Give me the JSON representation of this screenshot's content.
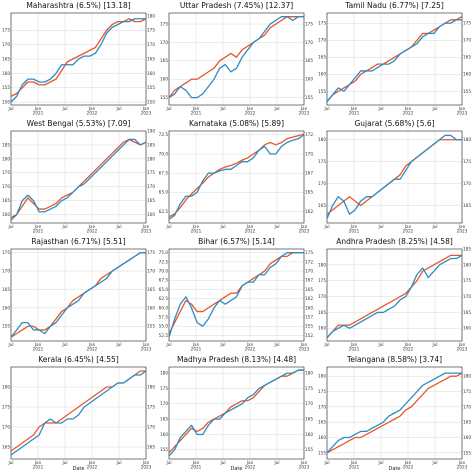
{
  "colors": {
    "orange": "#e8562a",
    "blue": "#2b8cc4",
    "grid": "#d9d9d9",
    "frame": "#222222"
  },
  "x_ticks": [
    "Jul",
    "Jan\n2021",
    "Jul",
    "Jan\n2022",
    "Jul",
    "Jan\n2023"
  ],
  "x_axis_label": "Date",
  "chart_data": [
    {
      "type": "line",
      "title": "Maharashtra (6.5%) [13.18]",
      "ylim": [
        149,
        181
      ],
      "left_ticks": [
        "150",
        "155",
        "160",
        "165",
        "170",
        "175"
      ],
      "right_ticks": [
        "150",
        "155",
        "160",
        "165",
        "170",
        "175",
        "180"
      ],
      "series": [
        {
          "color": "orange",
          "values": [
            152,
            153,
            155,
            157,
            157,
            156,
            156,
            157,
            158,
            161,
            164,
            165,
            166,
            167,
            168,
            169,
            172,
            175,
            177,
            178,
            178,
            179,
            178,
            178,
            179
          ]
        },
        {
          "color": "blue",
          "values": [
            150,
            152,
            156,
            158,
            158,
            157,
            157,
            158,
            160,
            163,
            163,
            163,
            165,
            166,
            166,
            167,
            170,
            174,
            176,
            177,
            178,
            178,
            179,
            179,
            179
          ]
        }
      ]
    },
    {
      "type": "line",
      "title": "Uttar Pradesh (7.45%) [12.37]",
      "ylim": [
        153,
        178
      ],
      "left_ticks": [
        "155",
        "160",
        "165",
        "170",
        "175"
      ],
      "right_ticks": [
        "155",
        "160",
        "165",
        "170",
        "175"
      ],
      "series": [
        {
          "color": "orange",
          "values": [
            155,
            157,
            158,
            159,
            160,
            160,
            161,
            162,
            163,
            165,
            166,
            167,
            166,
            168,
            169,
            170,
            171,
            172,
            174,
            175,
            176,
            177,
            177,
            177,
            177
          ]
        },
        {
          "color": "blue",
          "values": [
            155,
            156,
            158,
            157,
            155,
            155,
            156,
            158,
            160,
            163,
            164,
            162,
            163,
            166,
            168,
            170,
            171,
            173,
            175,
            176,
            177,
            177,
            176,
            177,
            177
          ]
        }
      ]
    },
    {
      "type": "line",
      "title": "Tamil Nadu (6.77%) [7.25]",
      "ylim": [
        151,
        178
      ],
      "left_ticks": [
        "155",
        "160",
        "165",
        "170",
        "175"
      ],
      "right_ticks": [
        "155",
        "160",
        "165",
        "170",
        "175"
      ],
      "series": [
        {
          "color": "orange",
          "values": [
            152,
            154,
            155,
            156,
            157,
            158,
            160,
            161,
            162,
            163,
            163,
            164,
            165,
            166,
            167,
            168,
            170,
            172,
            172,
            173,
            174,
            175,
            176,
            176,
            177
          ]
        },
        {
          "color": "blue",
          "values": [
            152,
            154,
            156,
            155,
            157,
            159,
            161,
            161,
            161,
            162,
            163,
            163,
            164,
            166,
            167,
            168,
            169,
            171,
            172,
            172,
            174,
            175,
            175,
            176,
            176
          ]
        }
      ]
    },
    {
      "type": "line",
      "title": "West Bengal (5.53%) [7.09]",
      "ylim": [
        157,
        190
      ],
      "left_ticks": [
        "160",
        "165",
        "170",
        "175",
        "180",
        "185"
      ],
      "right_ticks": [
        "160",
        "165",
        "170",
        "175",
        "180",
        "185",
        "190"
      ],
      "series": [
        {
          "color": "orange",
          "values": [
            159,
            160,
            163,
            166,
            164,
            162,
            162,
            163,
            164,
            166,
            167,
            168,
            170,
            172,
            174,
            176,
            178,
            180,
            182,
            184,
            186,
            187,
            186,
            185,
            186
          ]
        },
        {
          "color": "blue",
          "values": [
            158,
            160,
            165,
            167,
            165,
            161,
            161,
            162,
            163,
            165,
            166,
            168,
            170,
            171,
            173,
            175,
            177,
            179,
            181,
            183,
            185,
            187,
            187,
            185,
            186
          ]
        }
      ]
    },
    {
      "type": "line",
      "title": "Karnataka (5.08%) [5.89]",
      "ylim": [
        161,
        173
      ],
      "left_ticks": [
        "162.5",
        "165.0",
        "167.5",
        "170.0",
        "172.5"
      ],
      "right_ticks": [
        "162.5",
        "165.0",
        "167.5",
        "170.0",
        "172.5"
      ],
      "series": [
        {
          "color": "orange",
          "values": [
            161.8,
            162.2,
            163.0,
            164.0,
            164.8,
            165.5,
            166.2,
            167.0,
            167.5,
            168.0,
            168.3,
            168.5,
            168.8,
            169.2,
            169.5,
            170.0,
            170.5,
            171.2,
            171.5,
            171.2,
            171.5,
            172.0,
            172.2,
            172.4,
            172.6
          ]
        },
        {
          "color": "blue",
          "values": [
            161.5,
            162.0,
            163.5,
            164.5,
            164.5,
            165.0,
            166.5,
            167.5,
            167.5,
            167.8,
            168.0,
            168.0,
            168.5,
            169.0,
            169.0,
            169.5,
            170.5,
            171.0,
            170.0,
            170.0,
            171.0,
            171.5,
            171.8,
            172.0,
            172.5
          ]
        }
      ]
    },
    {
      "type": "line",
      "title": "Gujarat (5.68%) [5.6]",
      "ylim": [
        161,
        182
      ],
      "left_ticks": [
        "165",
        "170",
        "175",
        "180"
      ],
      "right_ticks": [
        "165",
        "170",
        "175",
        "180"
      ],
      "series": [
        {
          "color": "orange",
          "values": [
            163,
            164,
            165,
            166,
            167,
            166,
            165,
            166,
            167,
            168,
            169,
            170,
            171,
            172,
            174,
            175,
            176,
            177,
            178,
            179,
            180,
            180,
            180,
            180,
            180
          ]
        },
        {
          "color": "blue",
          "values": [
            162,
            165,
            167,
            166,
            163,
            164,
            166,
            167,
            167,
            168,
            169,
            170,
            171,
            171,
            173,
            175,
            176,
            177,
            178,
            179,
            180,
            181,
            181,
            180,
            180
          ]
        }
      ]
    },
    {
      "type": "line",
      "title": "Rajasthan (6.71%) [5.51]",
      "ylim": [
        151,
        176
      ],
      "left_ticks": [
        "155",
        "160",
        "165",
        "170",
        "175"
      ],
      "right_ticks": [
        "155",
        "160",
        "165",
        "170",
        "175"
      ],
      "series": [
        {
          "color": "orange",
          "values": [
            152,
            153,
            154,
            155,
            155,
            154,
            154,
            155,
            157,
            159,
            160,
            162,
            163,
            164,
            165,
            166,
            168,
            169,
            170,
            171,
            172,
            173,
            174,
            175,
            175
          ]
        },
        {
          "color": "blue",
          "values": [
            152,
            154,
            156,
            156,
            154,
            154,
            153,
            155,
            156,
            158,
            160,
            161,
            162,
            164,
            165,
            166,
            167,
            168,
            170,
            171,
            172,
            173,
            174,
            175,
            175
          ]
        }
      ]
    },
    {
      "type": "line",
      "title": "Bihar (6.57%) [5.14]",
      "ylim": [
        151,
        176
      ],
      "left_ticks": [
        "152.5",
        "155.0",
        "157.5",
        "160.0",
        "162.5",
        "165.0",
        "167.5",
        "170.0",
        "172.5",
        "175.0"
      ],
      "right_ticks": [
        "152.5",
        "155.0",
        "157.5",
        "160.0",
        "162.5",
        "165.0",
        "167.5",
        "170.0",
        "172.5",
        "175.0"
      ],
      "series": [
        {
          "color": "orange",
          "values": [
            153,
            156,
            159,
            162,
            161,
            159,
            159,
            160,
            161,
            162,
            163,
            164,
            164,
            166,
            167,
            168,
            169,
            170,
            172,
            173,
            174,
            174,
            175,
            175,
            175
          ]
        },
        {
          "color": "blue",
          "values": [
            152,
            157,
            161,
            163,
            160,
            156,
            155,
            157,
            160,
            162,
            161,
            162,
            163,
            166,
            167,
            167,
            169,
            169,
            171,
            172,
            174,
            175,
            175,
            175,
            175
          ]
        }
      ]
    },
    {
      "type": "line",
      "title": "Andhra Pradesh (8.25%) [4.58]",
      "ylim": [
        156,
        185
      ],
      "left_ticks": [
        "160",
        "165",
        "170",
        "175",
        "180"
      ],
      "right_ticks": [
        "160",
        "165",
        "170",
        "175",
        "180",
        "185"
      ],
      "series": [
        {
          "color": "orange",
          "values": [
            157,
            159,
            161,
            161,
            161,
            162,
            163,
            164,
            165,
            166,
            167,
            168,
            169,
            170,
            171,
            173,
            175,
            178,
            179,
            180,
            181,
            182,
            183,
            183,
            183
          ]
        },
        {
          "color": "blue",
          "values": [
            157,
            159,
            160,
            161,
            160,
            161,
            162,
            163,
            164,
            165,
            165,
            166,
            167,
            169,
            170,
            173,
            177,
            179,
            176,
            178,
            180,
            181,
            182,
            182,
            183
          ]
        }
      ]
    },
    {
      "type": "line",
      "title": "Kerala (6.45%) [4.55]",
      "ylim": [
        162,
        185
      ],
      "left_ticks": [
        "165",
        "170",
        "175",
        "180"
      ],
      "right_ticks": [
        "165",
        "170",
        "175",
        "180"
      ],
      "series": [
        {
          "color": "orange",
          "values": [
            164,
            165,
            166,
            167,
            168,
            170,
            171,
            171,
            171,
            172,
            173,
            174,
            175,
            176,
            177,
            178,
            179,
            180,
            180,
            181,
            181,
            182,
            183,
            184,
            184
          ]
        },
        {
          "color": "blue",
          "values": [
            163,
            164,
            165,
            166,
            167,
            168,
            171,
            172,
            171,
            171,
            172,
            172,
            173,
            175,
            176,
            177,
            178,
            179,
            180,
            181,
            181,
            182,
            183,
            183,
            184
          ]
        }
      ]
    },
    {
      "type": "line",
      "title": "Madhya Pradesh (8.13%) [4.48]",
      "ylim": [
        152,
        182
      ],
      "left_ticks": [
        "155",
        "160",
        "165",
        "170",
        "175",
        "180"
      ],
      "right_ticks": [
        "155",
        "160",
        "165",
        "170",
        "175",
        "180"
      ],
      "series": [
        {
          "color": "orange",
          "values": [
            154,
            156,
            158,
            160,
            162,
            161,
            162,
            164,
            165,
            166,
            167,
            169,
            170,
            171,
            171,
            172,
            174,
            176,
            177,
            178,
            179,
            179,
            180,
            181,
            181
          ]
        },
        {
          "color": "blue",
          "values": [
            153,
            155,
            159,
            161,
            163,
            160,
            160,
            163,
            165,
            165,
            167,
            168,
            169,
            170,
            172,
            173,
            175,
            176,
            177,
            178,
            179,
            180,
            180,
            181,
            181
          ]
        }
      ]
    },
    {
      "type": "line",
      "title": "Telangana (8.58%) [3.74]",
      "ylim": [
        153,
        183
      ],
      "left_ticks": [
        "155",
        "160",
        "165",
        "170",
        "175",
        "180"
      ],
      "right_ticks": [
        "155",
        "160",
        "165",
        "170",
        "175",
        "180"
      ],
      "series": [
        {
          "color": "orange",
          "values": [
            155,
            156,
            157,
            158,
            159,
            160,
            160,
            161,
            162,
            163,
            164,
            165,
            166,
            167,
            169,
            170,
            172,
            174,
            176,
            177,
            178,
            179,
            180,
            180,
            181
          ]
        },
        {
          "color": "blue",
          "values": [
            155,
            157,
            159,
            160,
            160,
            161,
            162,
            162,
            163,
            164,
            165,
            167,
            168,
            169,
            171,
            173,
            175,
            177,
            178,
            179,
            180,
            181,
            181,
            181,
            181
          ]
        }
      ]
    }
  ]
}
